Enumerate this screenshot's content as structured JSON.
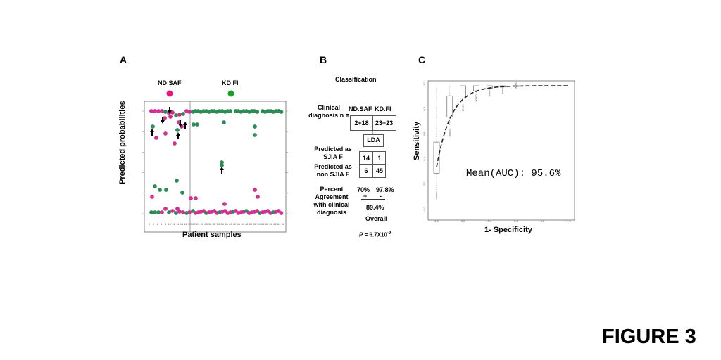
{
  "figure_label": "FIGURE 3",
  "panelA": {
    "label": "A",
    "legend_left": "ND SAF",
    "legend_right": "KD FI",
    "ylabel": "Predicted probabilities",
    "xlabel": "Patient samples",
    "colors": {
      "nd_saf": "#d0308f",
      "kd_fi": "#2e8b57",
      "legend_nd": "#e8187a",
      "legend_kd": "#1aa32a"
    },
    "x_ticks": [
      "0",
      "2",
      "4",
      "6",
      "8",
      "10",
      "12",
      "14",
      "16",
      "18",
      "20",
      "22",
      "24",
      "26",
      "28",
      "30",
      "32",
      "34",
      "36",
      "38",
      "40",
      "42",
      "44",
      "46",
      "48",
      "50",
      "52",
      "54",
      "56",
      "58",
      "60",
      "62",
      "64",
      "66"
    ]
  },
  "panelB": {
    "label": "B",
    "title": "Classification",
    "clinical_diagnosis": "Clinical diagnosis n =",
    "col_nd": "ND.SAF",
    "col_kd": "KD.FI",
    "n_nd": "2+18",
    "n_kd": "23+23",
    "lda": "LDA",
    "row_pred_sjia": "Predicted as SJIA F",
    "row_pred_non": "Predicted as non SJIA F",
    "cm": [
      "14",
      "1",
      "6",
      "45"
    ],
    "percent_agreement": "Percent Agreement with clinical diagnosis",
    "pct_nd": "70%",
    "pct_kd": "97.8%",
    "sign_nd": "+",
    "sign_kd": "-",
    "overall_pct": "89.4%",
    "overall": "Overall",
    "p_value_prefix": "P",
    "p_value_body": " = 6.7X10",
    "p_value_exp": "-9"
  },
  "panelC": {
    "label": "C",
    "ylabel": "Sensitivity",
    "xlabel": "1- Specificity",
    "auc_text": "Mean(AUC): 95.6%",
    "x_ticks": [
      "0.0",
      "0.2",
      "0.4",
      "0.6",
      "0.8",
      "1.0"
    ],
    "y_ticks": [
      "0.0",
      "0.2",
      "0.4",
      "0.6",
      "0.8",
      "1.0"
    ]
  }
}
